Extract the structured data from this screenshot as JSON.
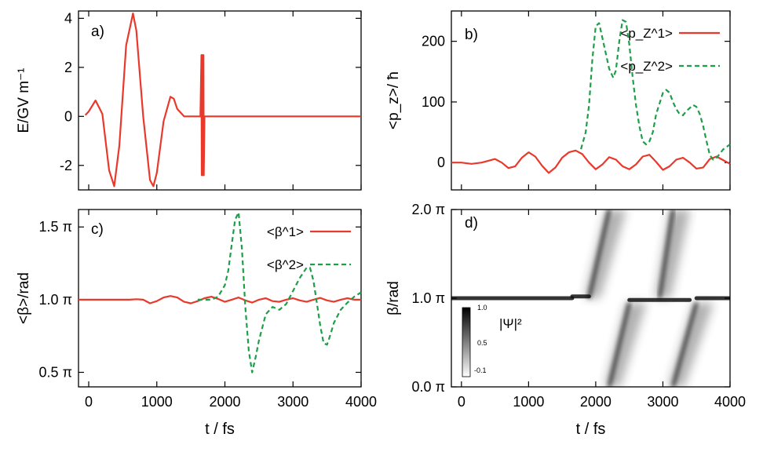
{
  "colors": {
    "series1": "#e8392b",
    "series2": "#1f9e4a",
    "axis": "#000000"
  },
  "chart_data": [
    {
      "id": "a",
      "panel_label": "a)",
      "type": "line",
      "xlabel": "",
      "ylabel": "E/GV m⁻¹",
      "xlim": [
        -150,
        4000
      ],
      "ylim": [
        -3.0,
        4.3
      ],
      "xticks": [
        0,
        1000,
        2000,
        3000,
        4000
      ],
      "xtick_labels": [
        "",
        "",
        "",
        "",
        ""
      ],
      "yticks": [
        -2,
        0,
        2,
        4
      ],
      "ytick_labels": [
        "-2",
        "0",
        "2",
        "4"
      ],
      "series": [
        {
          "color_key": "series1",
          "style": "solid",
          "x": [
            -50,
            0,
            100,
            200,
            300,
            375,
            450,
            550,
            650,
            700,
            800,
            900,
            950,
            1000,
            1100,
            1200,
            1250,
            1300,
            1400,
            1450,
            1500,
            1600,
            1640,
            1655,
            1660,
            1665,
            1670,
            1675,
            1680,
            1685,
            1690,
            1700,
            1720,
            1800,
            2000,
            3000,
            4000
          ],
          "y": [
            0.05,
            0.2,
            0.65,
            0.1,
            -2.2,
            -2.85,
            -1.2,
            2.9,
            4.2,
            3.5,
            0.0,
            -2.6,
            -2.85,
            -2.3,
            -0.2,
            0.8,
            0.72,
            0.3,
            0.0,
            0.0,
            0.0,
            0.0,
            0.0,
            2.5,
            -2.4,
            2.5,
            -2.4,
            2.5,
            -2.4,
            2.5,
            -2.4,
            0.0,
            0.0,
            0.0,
            0.0,
            0.0,
            0.0
          ]
        }
      ]
    },
    {
      "id": "b",
      "panel_label": "b)",
      "type": "line",
      "xlabel": "",
      "ylabel": "<p_z>/ ħ",
      "xlim": [
        -150,
        4000
      ],
      "ylim": [
        -45,
        250
      ],
      "xticks": [
        0,
        1000,
        2000,
        3000,
        4000
      ],
      "xtick_labels": [
        "",
        "",
        "",
        "",
        ""
      ],
      "yticks": [
        0,
        100,
        200
      ],
      "ytick_labels": [
        "0",
        "100",
        "200"
      ],
      "legend": "top-right",
      "series": [
        {
          "name": "<p_Z^1>",
          "color_key": "series1",
          "style": "solid",
          "x": [
            -150,
            0,
            150,
            300,
            400,
            500,
            600,
            700,
            800,
            900,
            1000,
            1100,
            1200,
            1300,
            1400,
            1500,
            1600,
            1700,
            1800,
            1900,
            2000,
            2100,
            2200,
            2300,
            2400,
            2500,
            2600,
            2700,
            2800,
            2900,
            3000,
            3100,
            3200,
            3300,
            3400,
            3500,
            3600,
            3700,
            3800,
            3900,
            4000
          ],
          "y": [
            0,
            0,
            -2,
            0,
            3,
            6,
            0,
            -9,
            -6,
            8,
            17,
            10,
            -5,
            -17,
            -8,
            8,
            17,
            20,
            14,
            0,
            -11,
            -3,
            9,
            5,
            -6,
            -11,
            -3,
            10,
            13,
            1,
            -12,
            -6,
            5,
            8,
            0,
            -10,
            -8,
            6,
            10,
            4,
            -2
          ]
        },
        {
          "name": "<p_Z^2>",
          "color_key": "series2",
          "style": "dashed",
          "x": [
            1780,
            1850,
            1900,
            1950,
            2000,
            2050,
            2100,
            2200,
            2260,
            2300,
            2350,
            2400,
            2450,
            2500,
            2550,
            2600,
            2650,
            2700,
            2750,
            2800,
            2850,
            2900,
            3000,
            3050,
            3100,
            3150,
            3200,
            3250,
            3300,
            3350,
            3400,
            3450,
            3500,
            3550,
            3600,
            3650,
            3700,
            3750,
            3800,
            3850,
            3900,
            4000
          ],
          "y": [
            22,
            50,
            95,
            170,
            225,
            230,
            205,
            155,
            140,
            152,
            200,
            235,
            232,
            195,
            140,
            95,
            60,
            35,
            30,
            35,
            50,
            80,
            115,
            120,
            115,
            100,
            88,
            80,
            78,
            85,
            90,
            95,
            92,
            80,
            60,
            35,
            12,
            5,
            8,
            15,
            22,
            30
          ]
        }
      ]
    },
    {
      "id": "c",
      "panel_label": "c)",
      "type": "line",
      "xlabel": "t / fs",
      "ylabel": "<β>/rad",
      "xlim": [
        -150,
        4000
      ],
      "ylim": [
        0.4,
        1.62
      ],
      "xticks": [
        0,
        1000,
        2000,
        3000,
        4000
      ],
      "xtick_labels": [
        "0",
        "1000",
        "2000",
        "3000",
        "4000"
      ],
      "yticks": [
        0.5,
        1.0,
        1.5
      ],
      "ytick_labels": [
        "0.5 π",
        "1.0 π",
        "1.5 π"
      ],
      "legend": "top-right",
      "series": [
        {
          "name": "<β^1>",
          "color_key": "series1",
          "style": "solid",
          "x": [
            -150,
            0,
            200,
            400,
            600,
            700,
            800,
            900,
            1000,
            1100,
            1200,
            1300,
            1400,
            1500,
            1600,
            1700,
            1800,
            1900,
            2000,
            2100,
            2200,
            2300,
            2400,
            2500,
            2600,
            2700,
            2800,
            2900,
            3000,
            3100,
            3200,
            3300,
            3400,
            3500,
            3600,
            3700,
            3800,
            3900,
            4000
          ],
          "y": [
            1.0,
            1.0,
            1.0,
            1.0,
            1.0,
            1.003,
            1.0,
            0.975,
            0.99,
            1.015,
            1.025,
            1.015,
            0.985,
            0.975,
            0.99,
            1.01,
            1.02,
            1.005,
            0.985,
            1.0,
            1.015,
            0.995,
            0.98,
            1.0,
            1.01,
            0.99,
            0.985,
            1.0,
            1.01,
            0.995,
            0.985,
            1.0,
            1.012,
            0.995,
            0.985,
            1.0,
            1.01,
            1.0,
            1.0
          ]
        },
        {
          "name": "<β^2>",
          "color_key": "series2",
          "style": "dashed",
          "x": [
            1600,
            1700,
            1800,
            1900,
            2000,
            2050,
            2100,
            2150,
            2200,
            2250,
            2300,
            2350,
            2400,
            2450,
            2500,
            2600,
            2700,
            2800,
            2900,
            3000,
            3100,
            3200,
            3250,
            3300,
            3350,
            3400,
            3450,
            3500,
            3550,
            3600,
            3700,
            3800,
            3900,
            4000
          ],
          "y": [
            1.0,
            1.0,
            1.0,
            1.02,
            1.1,
            1.2,
            1.38,
            1.55,
            1.6,
            1.35,
            0.95,
            0.65,
            0.5,
            0.6,
            0.72,
            0.9,
            0.95,
            0.93,
            0.97,
            1.06,
            1.15,
            1.22,
            1.22,
            1.13,
            0.98,
            0.82,
            0.7,
            0.69,
            0.76,
            0.84,
            0.93,
            0.98,
            1.02,
            1.05
          ]
        }
      ]
    },
    {
      "id": "d",
      "panel_label": "d)",
      "type": "heatmap",
      "xlabel": "t / fs",
      "ylabel": "β/rad",
      "xlim": [
        -150,
        4000
      ],
      "ylim": [
        0,
        2
      ],
      "xticks": [
        0,
        1000,
        2000,
        3000,
        4000
      ],
      "xtick_labels": [
        "0",
        "1000",
        "2000",
        "3000",
        "4000"
      ],
      "yticks": [
        0,
        1,
        2
      ],
      "ytick_labels": [
        "0.0 π",
        "1.0 π",
        "2.0 π"
      ],
      "colorbar": {
        "label": "|Ψ|²",
        "ticks": [
          "1.0",
          "0.5",
          "-0.1"
        ]
      },
      "features": [
        {
          "kind": "band",
          "x": [
            -150,
            1650
          ],
          "y_center": 1.0
        },
        {
          "kind": "band",
          "x": [
            1650,
            1900
          ],
          "y_center": 1.02
        },
        {
          "kind": "rising",
          "x": [
            1900,
            2200
          ],
          "y": [
            1.0,
            2.0
          ]
        },
        {
          "kind": "rising",
          "x": [
            2200,
            2500
          ],
          "y": [
            0.0,
            0.95
          ]
        },
        {
          "kind": "band",
          "x": [
            2500,
            3400
          ],
          "y_center": 0.98
        },
        {
          "kind": "rising",
          "x": [
            2950,
            3150
          ],
          "y": [
            1.0,
            2.0
          ]
        },
        {
          "kind": "rising",
          "x": [
            3150,
            3500
          ],
          "y": [
            0.0,
            0.95
          ]
        },
        {
          "kind": "band",
          "x": [
            3500,
            4000
          ],
          "y_center": 1.0
        }
      ]
    }
  ]
}
